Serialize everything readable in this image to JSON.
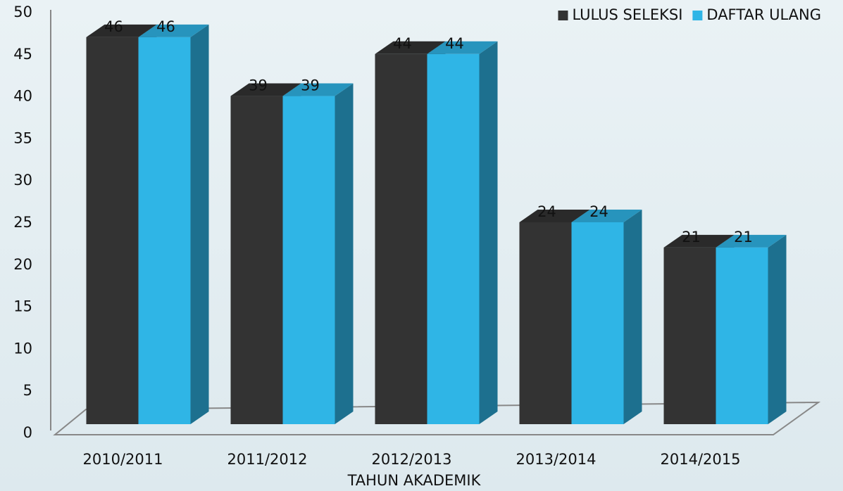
{
  "chart_data": {
    "type": "bar3d",
    "x_label": "TAHUN AKADEMIK",
    "categories": [
      "2010/2011",
      "2011/2012",
      "2012/2013",
      "2013/2014",
      "2014/2015"
    ],
    "series": [
      {
        "name": "LULUS SELEKSI",
        "color": "#333333",
        "values": [
          46,
          39,
          44,
          24,
          21
        ]
      },
      {
        "name": "DAFTAR ULANG",
        "color": "#2fb5e6",
        "values": [
          46,
          39,
          44,
          24,
          21
        ]
      }
    ],
    "ylim": [
      0,
      50
    ],
    "yticks": [
      0,
      5,
      10,
      15,
      20,
      25,
      30,
      35,
      40,
      45,
      50
    ],
    "legend": "top-right"
  }
}
